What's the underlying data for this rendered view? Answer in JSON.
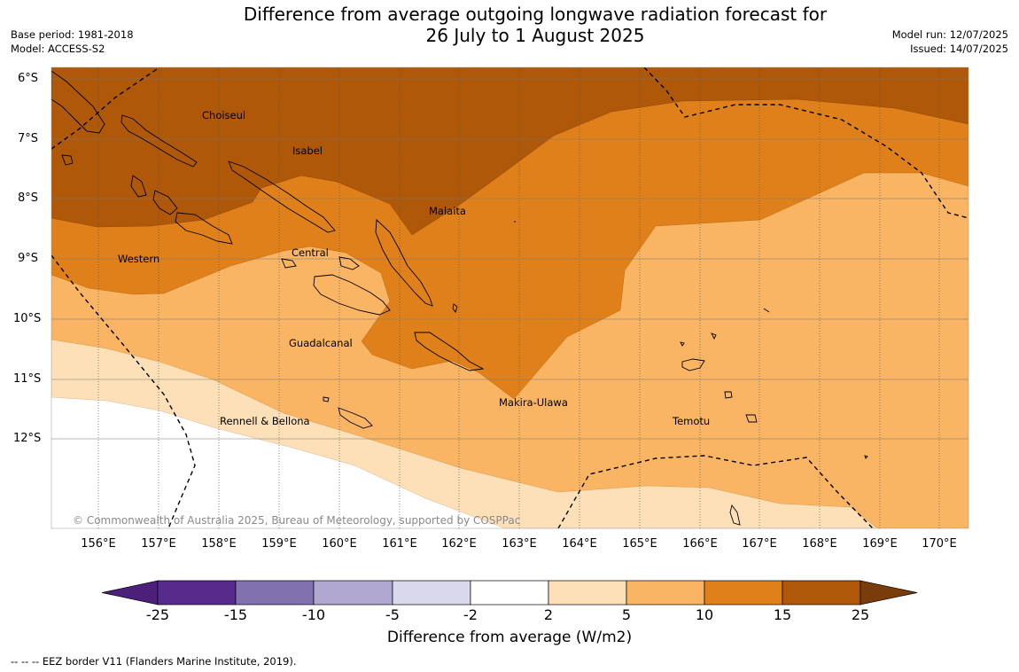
{
  "title": {
    "line1": "Difference from average outgoing longwave radiation forecast for",
    "line2": "26 July to 1 August 2025"
  },
  "meta_left": {
    "line1": "Base period: 1981-2018",
    "line2": "Model: ACCESS-S2"
  },
  "meta_right": {
    "line1": "Model run: 12/07/2025",
    "line2": "Issued: 14/07/2025"
  },
  "map": {
    "latitude_labels": [
      "6°S",
      "7°S",
      "8°S",
      "9°S",
      "10°S",
      "11°S",
      "12°S"
    ],
    "longitude_labels": [
      "156°E",
      "157°E",
      "158°E",
      "159°E",
      "160°E",
      "161°E",
      "162°E",
      "163°E",
      "164°E",
      "165°E",
      "166°E",
      "167°E",
      "168°E",
      "169°E",
      "170°E"
    ],
    "regions": [
      "Choiseul",
      "Isabel",
      "Malaita",
      "Western",
      "Central",
      "Guadalcanal",
      "Makira-Ulawa",
      "Rennell & Bellona",
      "Temotu"
    ],
    "copyright": "© Commonwealth of Australia 2025, Bureau of Meteorology, supported by COSPPac"
  },
  "colorbar": {
    "ticks": [
      "-25",
      "-15",
      "-10",
      "-5",
      "-2",
      "2",
      "5",
      "10",
      "15",
      "25"
    ],
    "colors": [
      "#4b1f7a",
      "#572a8c",
      "#8171ad",
      "#b0a8d1",
      "#d9d8ec",
      "#ffffff",
      "#fde0b8",
      "#f9b563",
      "#e0801a",
      "#b0580a",
      "#7a3c0a"
    ],
    "label": "Difference from average (W/m2)"
  },
  "footer": "-- -- -- EEZ border V11 (Flanders Marine Institute, 2019)."
}
